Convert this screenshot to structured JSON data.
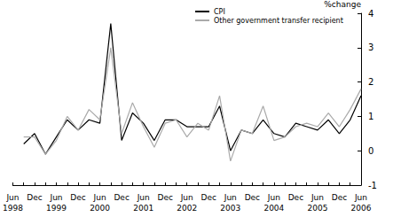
{
  "chart_data": {
    "type": "line",
    "y_label": "%change",
    "categories": [
      "Jun\n1998",
      null,
      "Dec",
      null,
      "Jun\n1999",
      null,
      "Dec",
      null,
      "Jun\n2000",
      null,
      "Dec",
      null,
      "Jun\n2001",
      null,
      "Dec",
      null,
      "Jun\n2002",
      null,
      "Dec",
      null,
      "Jun\n2003",
      null,
      "Dec",
      null,
      "Jun\n2004",
      null,
      "Dec",
      null,
      "Jun\n2005",
      null,
      "Dec",
      null,
      "Jun\n2006"
    ],
    "series": [
      {
        "name": "CPI",
        "color": "#000000",
        "values": [
          null,
          0.2,
          0.5,
          -0.1,
          0.4,
          0.9,
          0.6,
          0.9,
          0.8,
          3.7,
          0.3,
          1.1,
          0.8,
          0.3,
          0.9,
          0.9,
          0.7,
          0.7,
          0.7,
          1.3,
          0.0,
          0.6,
          0.5,
          0.9,
          0.5,
          0.4,
          0.8,
          0.7,
          0.6,
          0.9,
          0.5,
          0.9,
          1.6
        ]
      },
      {
        "name": "Other government transfer recipient",
        "color": "#aaaaaa",
        "values": [
          null,
          0.4,
          0.4,
          -0.1,
          0.3,
          1.0,
          0.6,
          1.2,
          0.9,
          3.0,
          0.5,
          1.4,
          0.7,
          0.1,
          0.8,
          0.9,
          0.4,
          0.8,
          0.6,
          1.6,
          -0.3,
          0.6,
          0.5,
          1.3,
          0.3,
          0.4,
          0.7,
          0.8,
          0.7,
          1.1,
          0.7,
          1.2,
          1.8
        ]
      }
    ],
    "ylim": [
      -1,
      4
    ],
    "yticks": [
      -1,
      0,
      1,
      2,
      3,
      4
    ],
    "legend": "top",
    "grid": false
  }
}
